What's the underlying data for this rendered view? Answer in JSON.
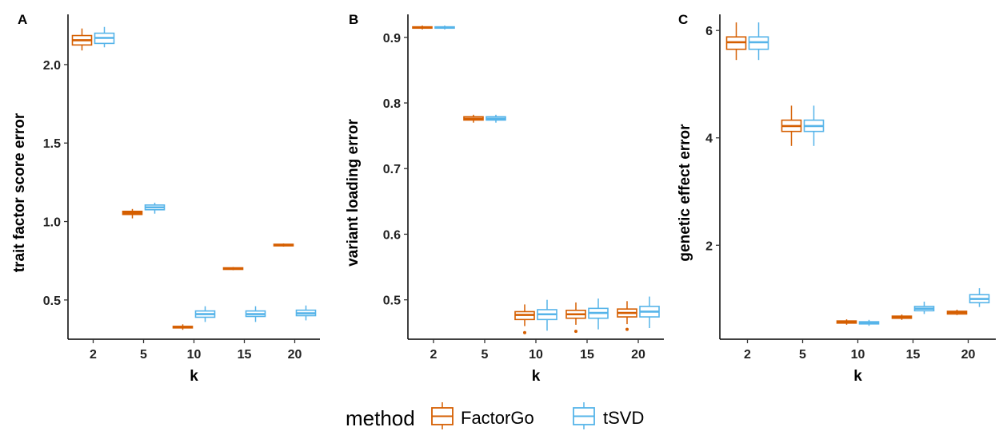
{
  "colors": {
    "FactorGo": "#d55e00",
    "tSVD": "#56b4e9"
  },
  "legend": {
    "title": "method",
    "items": [
      {
        "label": "FactorGo",
        "color": "#d55e00"
      },
      {
        "label": "tSVD",
        "color": "#56b4e9"
      }
    ]
  },
  "chart_data": [
    {
      "type": "box",
      "panel": "A",
      "xlabel": "k",
      "ylabel": "trait factor score error",
      "categories": [
        "2",
        "5",
        "10",
        "15",
        "20"
      ],
      "yticks": [
        0.5,
        1.0,
        1.5,
        2.0
      ],
      "ytick_labels": [
        "0.5",
        "1.0",
        "1.5",
        "2.0"
      ],
      "ylim": [
        0.25,
        2.32
      ],
      "series": [
        {
          "name": "FactorGo",
          "boxes": [
            {
              "lower": 2.09,
              "q1": 2.125,
              "median": 2.155,
              "q3": 2.185,
              "upper": 2.23,
              "outliers": []
            },
            {
              "lower": 1.02,
              "q1": 1.045,
              "median": 1.055,
              "q3": 1.065,
              "upper": 1.08,
              "outliers": []
            },
            {
              "lower": 0.31,
              "q1": 0.322,
              "median": 0.327,
              "q3": 0.332,
              "upper": 0.345,
              "outliers": []
            },
            {
              "lower": 0.69,
              "q1": 0.695,
              "median": 0.7,
              "q3": 0.705,
              "upper": 0.71,
              "outliers": []
            },
            {
              "lower": 0.84,
              "q1": 0.845,
              "median": 0.85,
              "q3": 0.855,
              "upper": 0.86,
              "outliers": []
            }
          ]
        },
        {
          "name": "tSVD",
          "boxes": [
            {
              "lower": 2.11,
              "q1": 2.135,
              "median": 2.17,
              "q3": 2.2,
              "upper": 2.24,
              "outliers": []
            },
            {
              "lower": 1.05,
              "q1": 1.075,
              "median": 1.09,
              "q3": 1.105,
              "upper": 1.12,
              "outliers": []
            },
            {
              "lower": 0.36,
              "q1": 0.39,
              "median": 0.41,
              "q3": 0.43,
              "upper": 0.46,
              "outliers": []
            },
            {
              "lower": 0.36,
              "q1": 0.395,
              "median": 0.41,
              "q3": 0.43,
              "upper": 0.46,
              "outliers": []
            },
            {
              "lower": 0.37,
              "q1": 0.4,
              "median": 0.415,
              "q3": 0.435,
              "upper": 0.465,
              "outliers": []
            }
          ]
        }
      ]
    },
    {
      "type": "box",
      "panel": "B",
      "xlabel": "k",
      "ylabel": "variant loading error",
      "categories": [
        "2",
        "5",
        "10",
        "15",
        "20"
      ],
      "yticks": [
        0.5,
        0.6,
        0.7,
        0.8,
        0.9
      ],
      "ytick_labels": [
        "0.5",
        "0.6",
        "0.7",
        "0.8",
        "0.9"
      ],
      "ylim": [
        0.44,
        0.935
      ],
      "series": [
        {
          "name": "FactorGo",
          "boxes": [
            {
              "lower": 0.912,
              "q1": 0.914,
              "median": 0.915,
              "q3": 0.916,
              "upper": 0.918,
              "outliers": []
            },
            {
              "lower": 0.77,
              "q1": 0.774,
              "median": 0.776,
              "q3": 0.779,
              "upper": 0.782,
              "outliers": []
            },
            {
              "lower": 0.46,
              "q1": 0.47,
              "median": 0.477,
              "q3": 0.482,
              "upper": 0.493,
              "outliers": [
                0.45
              ]
            },
            {
              "lower": 0.462,
              "q1": 0.472,
              "median": 0.478,
              "q3": 0.484,
              "upper": 0.496,
              "outliers": [
                0.452
              ]
            },
            {
              "lower": 0.463,
              "q1": 0.474,
              "median": 0.48,
              "q3": 0.486,
              "upper": 0.498,
              "outliers": [
                0.455
              ]
            }
          ]
        },
        {
          "name": "tSVD",
          "boxes": [
            {
              "lower": 0.912,
              "q1": 0.914,
              "median": 0.915,
              "q3": 0.916,
              "upper": 0.918,
              "outliers": []
            },
            {
              "lower": 0.77,
              "q1": 0.774,
              "median": 0.776,
              "q3": 0.779,
              "upper": 0.782,
              "outliers": []
            },
            {
              "lower": 0.453,
              "q1": 0.47,
              "median": 0.478,
              "q3": 0.485,
              "upper": 0.5,
              "outliers": []
            },
            {
              "lower": 0.455,
              "q1": 0.472,
              "median": 0.48,
              "q3": 0.487,
              "upper": 0.502,
              "outliers": []
            },
            {
              "lower": 0.457,
              "q1": 0.474,
              "median": 0.482,
              "q3": 0.49,
              "upper": 0.505,
              "outliers": []
            }
          ]
        }
      ]
    },
    {
      "type": "box",
      "panel": "C",
      "xlabel": "k",
      "ylabel": "genetic effect error",
      "categories": [
        "2",
        "5",
        "10",
        "15",
        "20"
      ],
      "yticks": [
        2,
        4,
        6
      ],
      "ytick_labels": [
        "2",
        "4",
        "6"
      ],
      "ylim": [
        0.25,
        6.3
      ],
      "series": [
        {
          "name": "FactorGo",
          "boxes": [
            {
              "lower": 5.45,
              "q1": 5.65,
              "median": 5.78,
              "q3": 5.88,
              "upper": 6.15,
              "outliers": []
            },
            {
              "lower": 3.85,
              "q1": 4.12,
              "median": 4.22,
              "q3": 4.33,
              "upper": 4.6,
              "outliers": []
            },
            {
              "lower": 0.52,
              "q1": 0.55,
              "median": 0.57,
              "q3": 0.59,
              "upper": 0.62,
              "outliers": []
            },
            {
              "lower": 0.61,
              "q1": 0.64,
              "median": 0.66,
              "q3": 0.68,
              "upper": 0.71,
              "outliers": []
            },
            {
              "lower": 0.7,
              "q1": 0.72,
              "median": 0.75,
              "q3": 0.77,
              "upper": 0.8,
              "outliers": []
            }
          ]
        },
        {
          "name": "tSVD",
          "boxes": [
            {
              "lower": 5.45,
              "q1": 5.65,
              "median": 5.78,
              "q3": 5.88,
              "upper": 6.15,
              "outliers": []
            },
            {
              "lower": 3.85,
              "q1": 4.12,
              "median": 4.22,
              "q3": 4.33,
              "upper": 4.6,
              "outliers": []
            },
            {
              "lower": 0.5,
              "q1": 0.535,
              "median": 0.555,
              "q3": 0.575,
              "upper": 0.61,
              "outliers": []
            },
            {
              "lower": 0.72,
              "q1": 0.78,
              "median": 0.82,
              "q3": 0.86,
              "upper": 0.95,
              "outliers": []
            },
            {
              "lower": 0.85,
              "q1": 0.93,
              "median": 1.0,
              "q3": 1.08,
              "upper": 1.2,
              "outliers": []
            }
          ]
        }
      ]
    }
  ]
}
